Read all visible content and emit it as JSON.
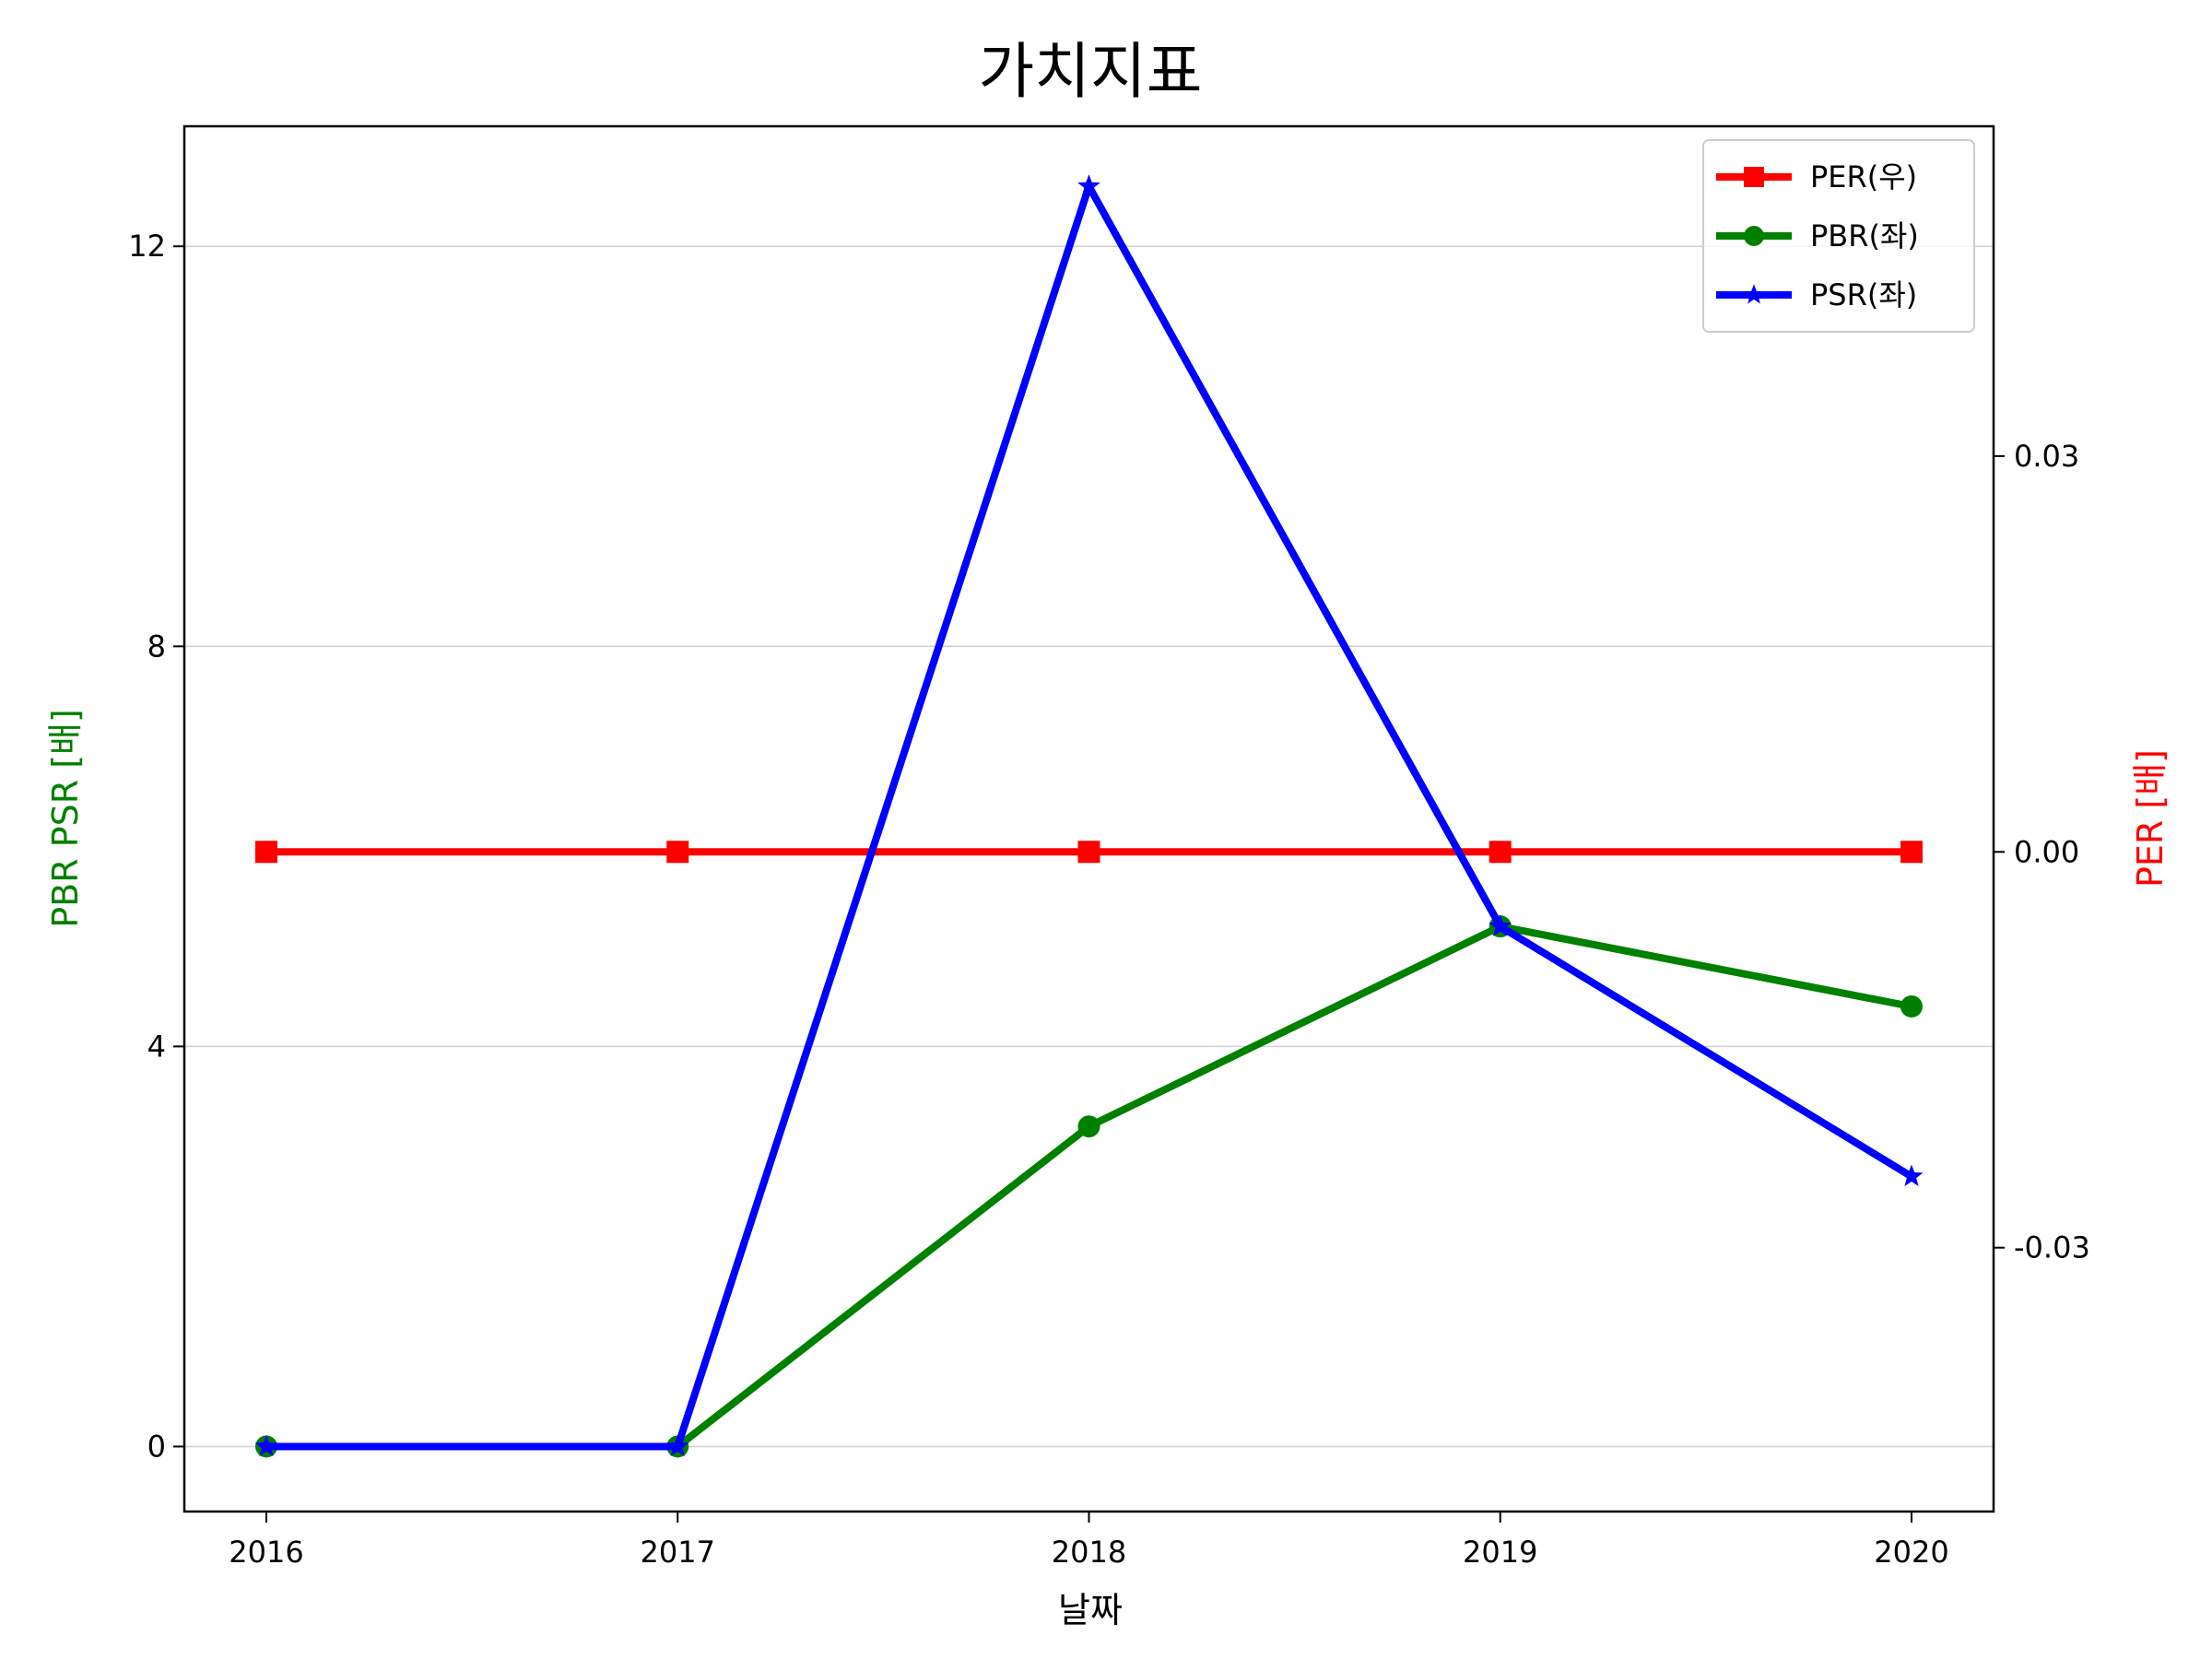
{
  "chart_data": {
    "type": "line",
    "title": "가치지표",
    "xlabel": "날짜",
    "ylabel_left": "PBR PSR [배]",
    "ylabel_right": "PER [배]",
    "x": [
      "2016",
      "2017",
      "2018",
      "2019",
      "2020"
    ],
    "ylim_left": [
      -0.65,
      13.2
    ],
    "yticks_left": [
      "0",
      "4",
      "8",
      "12"
    ],
    "ylim_right": [
      -0.05,
      0.055
    ],
    "yticks_right": [
      "-0.03",
      "0.00",
      "0.03"
    ],
    "grid": "horizontal",
    "legend_position": "top-right",
    "series": [
      {
        "name": "PER(우)",
        "axis": "right",
        "color": "#ff0000",
        "marker": "square",
        "values": [
          0,
          0,
          0,
          0,
          0
        ]
      },
      {
        "name": "PBR(좌)",
        "axis": "left",
        "color": "#008000",
        "marker": "circle",
        "values": [
          0,
          0,
          3.2,
          5.2,
          4.4
        ]
      },
      {
        "name": "PSR(좌)",
        "axis": "left",
        "color": "#0000ff",
        "marker": "star",
        "values": [
          0,
          0,
          12.6,
          5.2,
          2.7
        ]
      }
    ]
  }
}
